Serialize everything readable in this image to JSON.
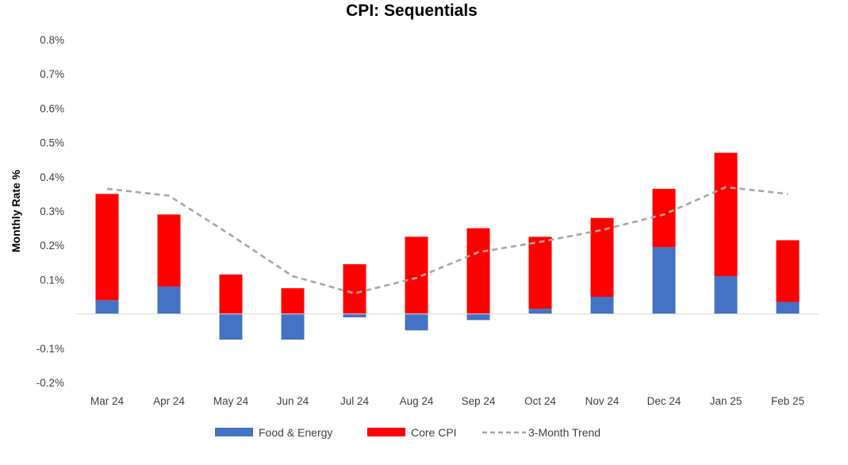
{
  "chart_data": {
    "type": "bar",
    "title": "CPI: Sequentials",
    "ylabel": "Monthly Rate %",
    "xlabel": "",
    "categories": [
      "Mar 24",
      "Apr 24",
      "May 24",
      "Jun 24",
      "Jul 24",
      "Aug 24",
      "Sep 24",
      "Oct 24",
      "Nov 24",
      "Dec 24",
      "Jan 25",
      "Feb 25"
    ],
    "y_tick_labels": [
      "0.8%",
      "0.7%",
      "0.6%",
      "0.5%",
      "0.4%",
      "0.3%",
      "0.2%",
      "0.1%",
      "-0.1%",
      "-0.2%"
    ],
    "ylim": [
      -0.2,
      0.8
    ],
    "stacked": true,
    "grid": false,
    "legend_position": "bottom",
    "series": [
      {
        "name": "Food & Energy",
        "type": "bar",
        "color": "#4472C4",
        "values": [
          0.04,
          0.08,
          -0.075,
          -0.075,
          -0.01,
          -0.048,
          -0.018,
          0.015,
          0.05,
          0.195,
          0.11,
          0.035
        ]
      },
      {
        "name": "Core CPI",
        "type": "bar",
        "color": "#FF0000",
        "values": [
          0.31,
          0.21,
          0.115,
          0.075,
          0.145,
          0.225,
          0.25,
          0.21,
          0.23,
          0.17,
          0.36,
          0.18
        ]
      },
      {
        "name": "3-Month Trend",
        "type": "line",
        "style": "dashed",
        "color": "#A6A6A6",
        "values": [
          0.365,
          0.345,
          0.23,
          0.11,
          0.06,
          0.105,
          0.18,
          0.21,
          0.245,
          0.29,
          0.37,
          0.35
        ]
      }
    ]
  }
}
